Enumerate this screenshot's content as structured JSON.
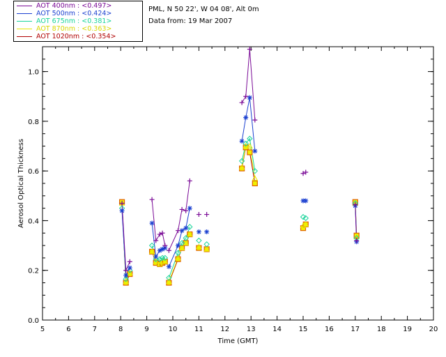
{
  "header": {
    "site": "PML, N 50 22', W 04 08', Alt 0m",
    "date_line": "Data from: 19 Mar 2007"
  },
  "legend": [
    {
      "label": "AOT  400nm : <0.497>",
      "color": "#7a0a96"
    },
    {
      "label": "AOT  500nm : <0.424>",
      "color": "#1a3fd0"
    },
    {
      "label": "AOT  675nm : <0.381>",
      "color": "#18d49a"
    },
    {
      "label": "AOT  870nm : <0.363>",
      "color": "#e8e800"
    },
    {
      "label": "AOT 1020nm : <0.354>",
      "color": "#b00000"
    }
  ],
  "chart_data": {
    "type": "line",
    "title": "",
    "xlabel": "Time (GMT)",
    "ylabel": "Aerosol Optical Thickness",
    "xlim": [
      5,
      20
    ],
    "ylim": [
      0.0,
      1.1
    ],
    "xticks": [
      5,
      6,
      7,
      8,
      9,
      10,
      11,
      12,
      13,
      14,
      15,
      16,
      17,
      18,
      19,
      20
    ],
    "yticks": [
      0.0,
      0.2,
      0.4,
      0.6,
      0.8,
      1.0
    ],
    "x": [
      8.05,
      8.2,
      8.35,
      9.2,
      9.35,
      9.5,
      9.6,
      9.7,
      9.85,
      10.2,
      10.35,
      10.5,
      10.65,
      11.0,
      11.3,
      12.65,
      12.8,
      12.95,
      13.15,
      15.0,
      15.1,
      17.0,
      17.05
    ],
    "segments": [
      [
        0,
        2
      ],
      [
        3,
        7
      ],
      [
        8,
        12
      ],
      [
        13,
        13
      ],
      [
        14,
        14
      ],
      [
        15,
        18
      ],
      [
        19,
        19
      ],
      [
        20,
        20
      ],
      [
        21,
        22
      ]
    ],
    "series": [
      {
        "name": "AOT 400nm",
        "marker": "plus",
        "color": "#7a0a96",
        "values": [
          0.47,
          0.2,
          0.235,
          0.485,
          0.32,
          0.345,
          0.35,
          0.3,
          0.28,
          0.36,
          0.445,
          0.44,
          0.56,
          0.425,
          0.425,
          0.875,
          0.9,
          1.09,
          0.805,
          0.59,
          0.595,
          0.465,
          0.32
        ]
      },
      {
        "name": "AOT 500nm",
        "marker": "star",
        "color": "#1a3fd0",
        "values": [
          0.44,
          0.18,
          0.21,
          0.39,
          0.255,
          0.28,
          0.285,
          0.29,
          0.215,
          0.3,
          0.36,
          0.37,
          0.45,
          0.355,
          0.355,
          0.72,
          0.815,
          0.895,
          0.68,
          0.48,
          0.48,
          0.46,
          0.315
        ]
      },
      {
        "name": "AOT 675nm",
        "marker": "diamond",
        "color": "#18d49a",
        "values": [
          0.45,
          0.165,
          0.2,
          0.3,
          0.245,
          0.245,
          0.25,
          0.25,
          0.17,
          0.27,
          0.31,
          0.33,
          0.375,
          0.32,
          0.305,
          0.64,
          0.71,
          0.73,
          0.6,
          0.415,
          0.41,
          0.47,
          0.33
        ]
      },
      {
        "name": "AOT 870nm",
        "marker": "triangle",
        "color": "#e8e800",
        "values": [
          0.47,
          0.155,
          0.19,
          0.275,
          0.235,
          0.225,
          0.235,
          0.235,
          0.155,
          0.25,
          0.29,
          0.31,
          0.345,
          0.295,
          0.285,
          0.615,
          0.7,
          0.7,
          0.57,
          0.38,
          0.385,
          0.47,
          0.335
        ]
      },
      {
        "name": "AOT 1020nm",
        "marker": "square",
        "color": "#b00000",
        "values": [
          0.475,
          0.15,
          0.185,
          0.275,
          0.23,
          0.225,
          0.23,
          0.235,
          0.15,
          0.245,
          0.29,
          0.31,
          0.345,
          0.29,
          0.285,
          0.61,
          0.695,
          0.675,
          0.55,
          0.37,
          0.385,
          0.475,
          0.34
        ]
      }
    ]
  }
}
